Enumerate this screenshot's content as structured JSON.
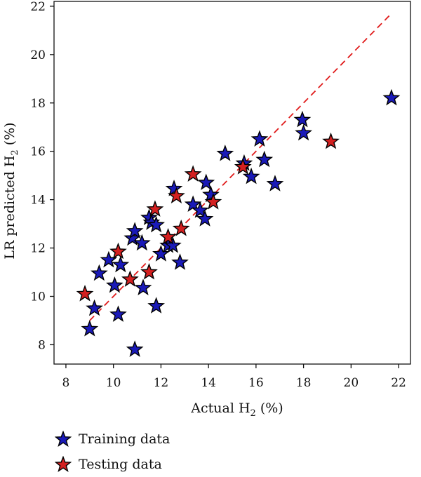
{
  "chart_data": {
    "type": "scatter",
    "xlabel": "Actual H",
    "xlabel_sub": "2",
    "xlabel_suffix": " (%)",
    "ylabel": "LR predicted H",
    "ylabel_sub": "2",
    "ylabel_suffix": " (%)",
    "xlim": [
      7.5,
      22.5
    ],
    "ylim": [
      7.2,
      22.2
    ],
    "xticks": [
      8,
      10,
      12,
      14,
      16,
      18,
      20,
      22
    ],
    "yticks": [
      8,
      10,
      12,
      14,
      16,
      18,
      20,
      22
    ],
    "legend_position": "bottom-left",
    "fit_line": {
      "x": [
        9.0,
        21.7
      ],
      "y": [
        9.0,
        21.7
      ],
      "color": "#e01b1b",
      "style": "dashed"
    },
    "series": [
      {
        "name": "Training data",
        "color": "#1a1ab8",
        "points": [
          [
            9.0,
            8.65
          ],
          [
            9.2,
            9.5
          ],
          [
            9.4,
            10.95
          ],
          [
            9.8,
            11.5
          ],
          [
            10.05,
            10.45
          ],
          [
            10.2,
            9.25
          ],
          [
            10.3,
            11.3
          ],
          [
            10.8,
            12.4
          ],
          [
            10.9,
            12.7
          ],
          [
            10.9,
            7.8
          ],
          [
            11.2,
            12.2
          ],
          [
            11.25,
            10.35
          ],
          [
            11.5,
            13.25
          ],
          [
            11.6,
            13.05
          ],
          [
            11.8,
            12.95
          ],
          [
            11.8,
            9.6
          ],
          [
            12.0,
            11.75
          ],
          [
            12.3,
            12.1
          ],
          [
            12.5,
            12.1
          ],
          [
            12.55,
            14.45
          ],
          [
            12.8,
            11.4
          ],
          [
            13.35,
            13.8
          ],
          [
            13.65,
            13.55
          ],
          [
            13.85,
            13.2
          ],
          [
            13.9,
            14.7
          ],
          [
            14.1,
            14.2
          ],
          [
            14.7,
            15.9
          ],
          [
            15.5,
            15.5
          ],
          [
            15.8,
            14.95
          ],
          [
            16.15,
            16.5
          ],
          [
            16.35,
            15.65
          ],
          [
            16.8,
            14.65
          ],
          [
            17.95,
            17.3
          ],
          [
            18.0,
            16.75
          ],
          [
            21.7,
            18.2
          ]
        ]
      },
      {
        "name": "Testing data",
        "color": "#d42020",
        "points": [
          [
            8.8,
            10.1
          ],
          [
            10.2,
            11.85
          ],
          [
            10.7,
            10.7
          ],
          [
            11.5,
            11.0
          ],
          [
            11.75,
            13.6
          ],
          [
            12.3,
            12.45
          ],
          [
            12.65,
            14.15
          ],
          [
            12.85,
            12.8
          ],
          [
            13.35,
            15.05
          ],
          [
            14.2,
            13.9
          ],
          [
            15.45,
            15.35
          ],
          [
            19.15,
            16.4
          ]
        ]
      }
    ]
  }
}
